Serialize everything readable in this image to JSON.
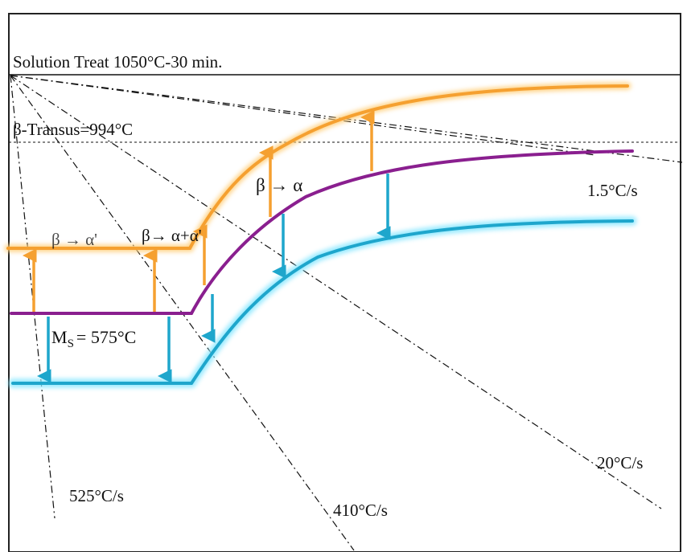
{
  "caption": "",
  "labels": {
    "solution_treat": "Solution Treat 1050°C-30 min.",
    "beta_transus": "β-Transus=994°C",
    "ms": "M",
    "ms_sub": "S",
    "ms_value": "= 575°C",
    "trans_alpha_prime": "β → α'",
    "trans_alpha_alpha_prime": "β→ α+α'",
    "trans_alpha": "β → α"
  },
  "cooling_rates": [
    "525°C/s",
    "410°C/s",
    "20°C/s",
    "1.5°C/s"
  ],
  "colors": {
    "orange_curve": "#f5a030",
    "purple_curve": "#8a1f8f",
    "cyan_curve": "#1ea6cc",
    "up_arrow": "#f5a030",
    "down_arrow": "#1ea6cc",
    "lines": "#111111"
  }
}
